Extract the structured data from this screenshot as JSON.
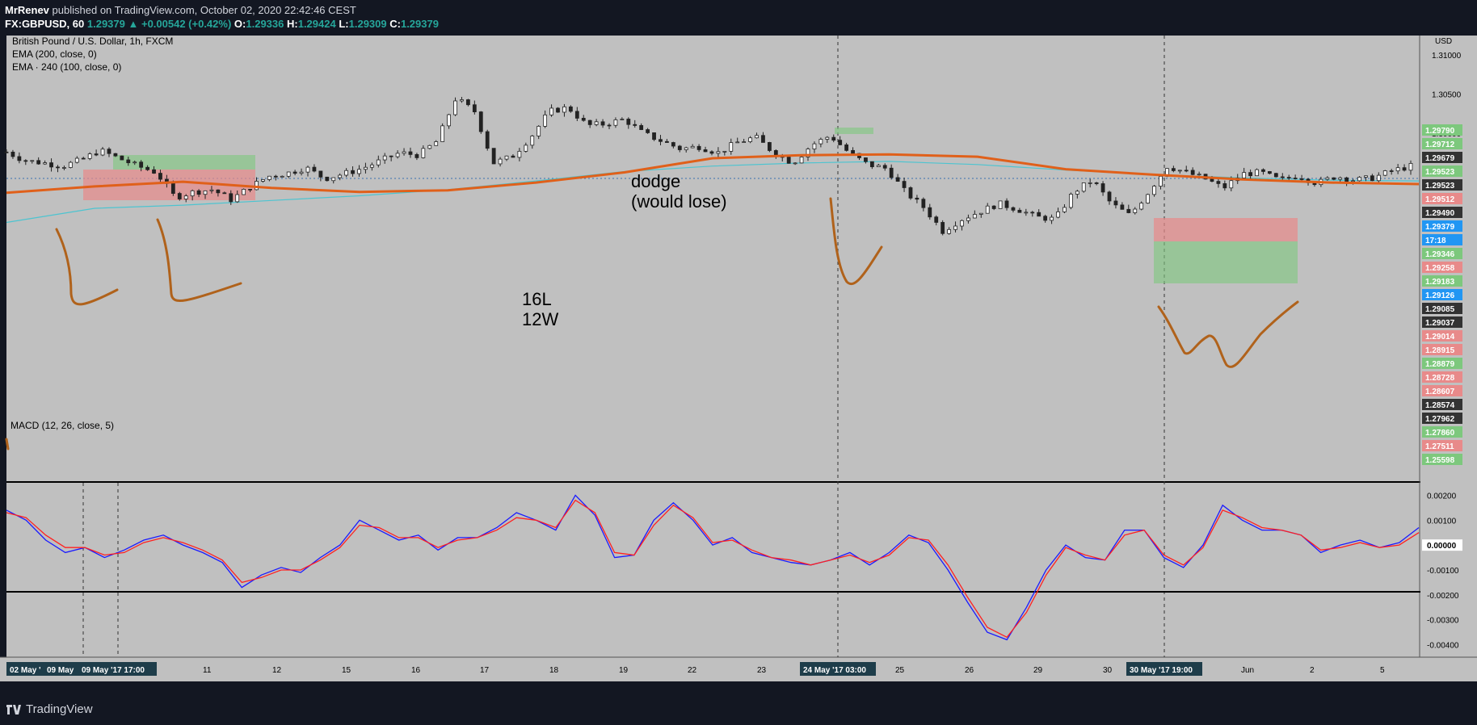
{
  "header": {
    "author": "MrRenev",
    "published": "published on TradingView.com, October 02, 2020 22:42:46 CEST",
    "symbol": "FX:GBPUSD, 60",
    "last": "1.29379",
    "change": "▲ +0.00542 (+0.42%)",
    "o_label": "O:",
    "o": "1.29336",
    "h_label": "H:",
    "h": "1.29424",
    "l_label": "L:",
    "l": "1.29309",
    "c_label": "C:",
    "c": "1.29379"
  },
  "legend": {
    "title": "British Pound / U.S. Dollar, 1h, FXCM",
    "ema1": "EMA (200, close, 0)",
    "ema2": "EMA · 240 (100, close, 0)",
    "currency": "USD",
    "macd": "MACD (12, 26, close, 5)"
  },
  "annotations": {
    "dodge1": "dodge",
    "dodge2": "(would lose)",
    "score1": "16L",
    "score2": "12W"
  },
  "footer": {
    "brand": "TradingView"
  },
  "colors": {
    "bg_chart": "#c0c0c0",
    "ema200": "#e0601a",
    "ema240": "#4dc4d0",
    "brush": "#b0621b",
    "macd": "#1a1aff",
    "signal": "#ff2020",
    "up_box": "#7dc87d",
    "down_box": "#e88a8a"
  },
  "chart_data": [
    {
      "type": "line",
      "title": "British Pound / U.S. Dollar, 1h, FXCM",
      "x_axis_ticks": [
        "11",
        "12",
        "15",
        "16",
        "17",
        "18",
        "19",
        "22",
        "23",
        "24 May '17 03:00",
        "25",
        "26",
        "29",
        "30",
        "30 May '17 19:00",
        "Jun",
        "2",
        "5"
      ],
      "x_axis_highlight": [
        "02 May '",
        "09 May",
        "09 May '17 17:00"
      ],
      "ylim": [
        1.2555,
        1.3125
      ],
      "y_axis_ticks": [
        1.31,
        1.305,
        1.3
      ],
      "series": [
        {
          "name": "EMA (200, close, 0)",
          "values": [
            1.2924,
            1.2932,
            1.2938,
            1.293,
            1.2925,
            1.2927,
            1.2937,
            1.295,
            1.2968,
            1.2972,
            1.2973,
            1.297,
            1.2954,
            1.2947,
            1.2941,
            1.2937,
            1.2935
          ]
        },
        {
          "name": "EMA · 240 (100, close, 0)",
          "values": [
            1.2886,
            1.2904,
            1.2908,
            1.2914,
            1.292,
            1.2928,
            1.2939,
            1.2951,
            1.2958,
            1.2962,
            1.2964,
            1.296,
            1.2953,
            1.2947,
            1.2943,
            1.294,
            1.2939
          ]
        },
        {
          "name": "Price",
          "values": [
            1.2976,
            1.2965,
            1.2962,
            1.2958,
            1.2966,
            1.2978,
            1.2968,
            1.2958,
            1.295,
            1.2918,
            1.2925,
            1.2928,
            1.2915,
            1.2931,
            1.2945,
            1.2949,
            1.2956,
            1.2942,
            1.2948,
            1.2955,
            1.2965,
            1.2975,
            1.2972,
            1.299,
            1.3045,
            1.3028,
            1.2962,
            1.297,
            1.2995,
            1.3028,
            1.3033,
            1.301,
            1.3012,
            1.3018,
            1.3,
            1.299,
            1.298,
            1.2983,
            1.2975,
            1.2988,
            1.2995,
            1.2975,
            1.2962,
            1.2985,
            1.2997,
            1.2975,
            1.296,
            1.2955,
            1.2925,
            1.2905,
            1.2875,
            1.289,
            1.29,
            1.291,
            1.2903,
            1.2893,
            1.289,
            1.2925,
            1.294,
            1.291,
            1.2895,
            1.2925,
            1.2958,
            1.295,
            1.2942,
            1.293,
            1.2948,
            1.295,
            1.294,
            1.2946,
            1.2936,
            1.2945,
            1.294,
            1.2943,
            1.2952,
            1.2958
          ]
        }
      ],
      "price_labels": [
        "1.29790",
        "1.29712",
        "1.29679",
        "1.29523",
        "1.29523",
        "1.29512",
        "1.29490",
        "1.29379",
        "17:18",
        "1.29346",
        "1.29258",
        "1.29183",
        "1.29126",
        "1.29085",
        "1.29037",
        "1.29014",
        "1.28915",
        "1.28879",
        "1.28728",
        "1.28607",
        "1.28574",
        "1.27962",
        "1.27860",
        "1.27511",
        "1.25598"
      ]
    },
    {
      "type": "line",
      "title": "MACD (12, 26, close, 5)",
      "ylim": [
        -0.0045,
        0.0025
      ],
      "y_axis_ticks": [
        0.002,
        0.001,
        0.0,
        -0.001,
        -0.002,
        -0.003,
        -0.004
      ],
      "y_tick_labels": [
        "0.00200",
        "0.00100",
        "0.00000",
        "-0.00100",
        "-0.00200",
        "-0.00300",
        "-0.00400"
      ],
      "series": [
        {
          "name": "MACD",
          "values": [
            0.0014,
            0.001,
            0.0002,
            -0.0003,
            -0.0001,
            -0.0005,
            -0.0002,
            0.0002,
            0.0004,
            0.0,
            -0.0003,
            -0.0007,
            -0.0017,
            -0.0012,
            -0.0009,
            -0.0011,
            -0.0005,
            0.0,
            0.001,
            0.0006,
            0.0002,
            0.0004,
            -0.0002,
            0.0003,
            0.0003,
            0.0007,
            0.0013,
            0.001,
            0.0006,
            0.002,
            0.0012,
            -0.0005,
            -0.0004,
            0.001,
            0.0017,
            0.001,
            0.0,
            0.0003,
            -0.0003,
            -0.0005,
            -0.0007,
            -0.0008,
            -0.0006,
            -0.0003,
            -0.0008,
            -0.0003,
            0.0004,
            0.0001,
            -0.001,
            -0.0023,
            -0.0035,
            -0.0038,
            -0.0025,
            -0.001,
            0.0,
            -0.0005,
            -0.0006,
            0.0006,
            0.0006,
            -0.0005,
            -0.0009,
            0.0,
            0.0016,
            0.001,
            0.0006,
            0.0006,
            0.0004,
            -0.0003,
            0.0,
            0.0002,
            -0.0001,
            0.0001,
            0.0007
          ]
        },
        {
          "name": "Signal",
          "values": [
            0.0013,
            0.0011,
            0.0004,
            -0.0001,
            -0.0001,
            -0.0004,
            -0.0003,
            0.0001,
            0.0003,
            0.0001,
            -0.0002,
            -0.0006,
            -0.0015,
            -0.0013,
            -0.001,
            -0.001,
            -0.0006,
            -0.0001,
            0.0008,
            0.0007,
            0.0003,
            0.0003,
            -0.0001,
            0.0002,
            0.0003,
            0.0006,
            0.0011,
            0.001,
            0.0007,
            0.0018,
            0.0013,
            -0.0003,
            -0.0004,
            0.0008,
            0.0016,
            0.0011,
            0.0001,
            0.0002,
            -0.0002,
            -0.0005,
            -0.0006,
            -0.0008,
            -0.0006,
            -0.0004,
            -0.0007,
            -0.0004,
            0.0003,
            0.0002,
            -0.0008,
            -0.0021,
            -0.0033,
            -0.0037,
            -0.0027,
            -0.0012,
            -0.0001,
            -0.0004,
            -0.0006,
            0.0004,
            0.0006,
            -0.0004,
            -0.0008,
            -0.0001,
            0.0014,
            0.0011,
            0.0007,
            0.0006,
            0.0004,
            -0.0002,
            -0.0001,
            0.0001,
            -0.0001,
            0.0,
            0.0005
          ]
        }
      ]
    }
  ]
}
